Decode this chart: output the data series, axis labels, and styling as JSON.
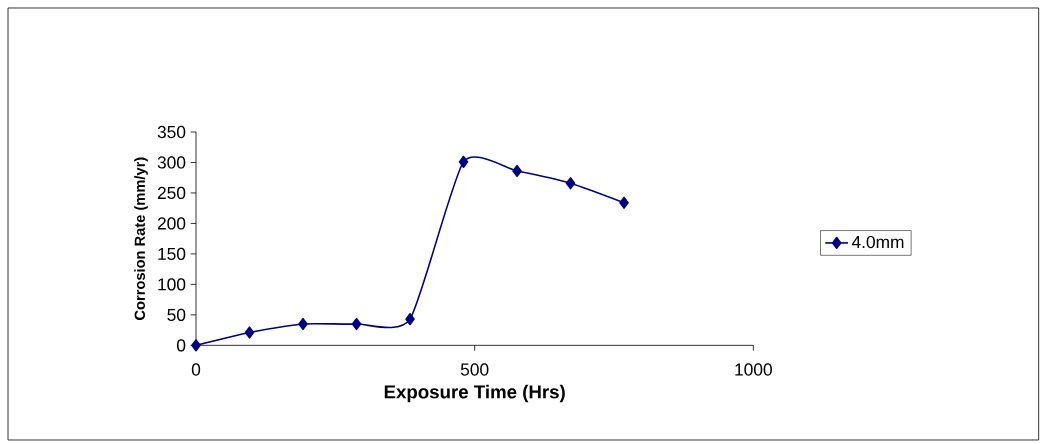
{
  "chart_data": {
    "type": "line",
    "xlabel": "Exposure Time (Hrs)",
    "ylabel": "Corrosion Rate (mm/yr)",
    "x": [
      0,
      96,
      192,
      288,
      384,
      480,
      576,
      672,
      768
    ],
    "series": [
      {
        "name": "4.0mm",
        "color": "#000080",
        "values": [
          0,
          21,
          35,
          35,
          43,
          301,
          286,
          266,
          234
        ]
      }
    ],
    "xlim": [
      0,
      1000
    ],
    "ylim": [
      0,
      350
    ],
    "xticks": [
      0,
      500,
      1000
    ],
    "yticks": [
      0,
      50,
      100,
      150,
      200,
      250,
      300,
      350
    ],
    "grid": false,
    "legend": "right",
    "marker": "diamond",
    "line_style": "solid"
  }
}
